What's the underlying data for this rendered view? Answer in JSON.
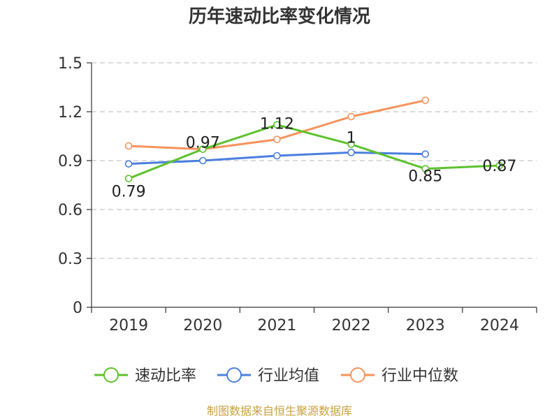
{
  "chart_data": {
    "type": "line",
    "title": "历年速动比率变化情况",
    "categories": [
      "2019",
      "2020",
      "2021",
      "2022",
      "2023",
      "2024"
    ],
    "ylim": [
      0,
      1.5
    ],
    "yticks": [
      "0",
      "0.3",
      "0.6",
      "0.9",
      "1.2",
      "1.5"
    ],
    "ytick_values": [
      0,
      0.3,
      0.6,
      0.9,
      1.2,
      1.5
    ],
    "grid": true,
    "legend_position": "bottom",
    "series": [
      {
        "name": "速动比率",
        "color": "#5cc22e",
        "values": [
          0.79,
          0.97,
          1.12,
          1.0,
          0.85,
          0.87
        ],
        "labels": [
          "0.79",
          "0.97",
          "1.12",
          "1",
          "0.85",
          "0.87"
        ]
      },
      {
        "name": "行业均值",
        "color": "#4b7fde",
        "values": [
          0.88,
          0.9,
          0.93,
          0.95,
          0.94,
          null
        ]
      },
      {
        "name": "行业中位数",
        "color": "#f7935c",
        "values": [
          0.99,
          0.97,
          1.03,
          1.17,
          1.27,
          null
        ]
      }
    ]
  },
  "source": "制图数据来自恒生聚源数据库"
}
